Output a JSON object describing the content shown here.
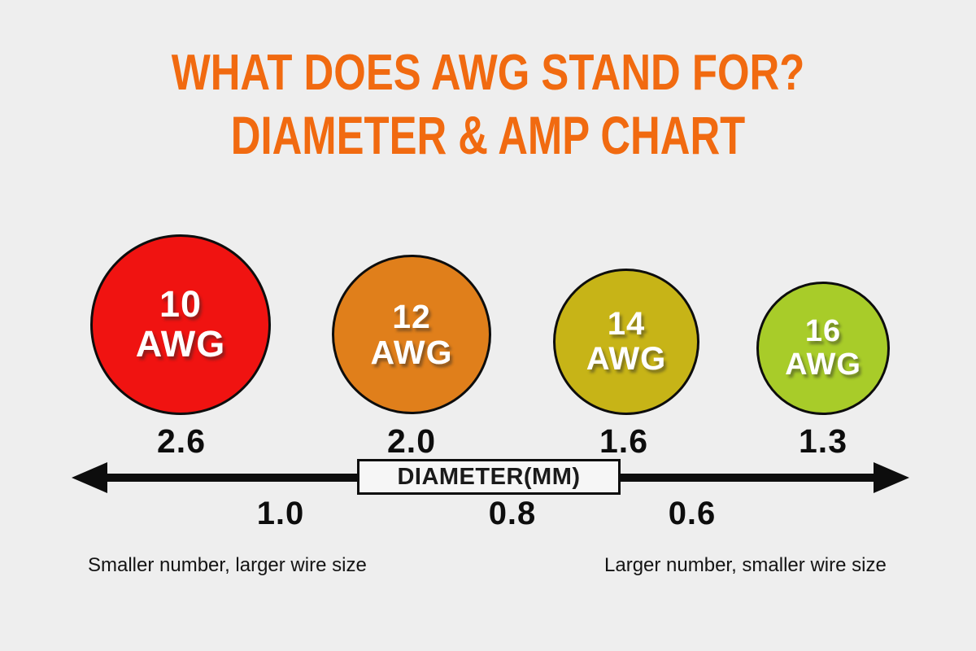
{
  "background": "#eeeeee",
  "title": {
    "line1": "WHAT DOES AWG STAND FOR?",
    "line2": "DIAMETER & AMP CHART",
    "color": "#f16a10"
  },
  "circles": [
    {
      "gauge": "10",
      "unit": "AWG",
      "diameter_mm": "2.6",
      "color": "#f01311"
    },
    {
      "gauge": "12",
      "unit": "AWG",
      "diameter_mm": "2.0",
      "color": "#e07f1b"
    },
    {
      "gauge": "14",
      "unit": "AWG",
      "diameter_mm": "1.6",
      "color": "#c7b417"
    },
    {
      "gauge": "16",
      "unit": "AWG",
      "diameter_mm": "1.3",
      "color": "#a8cc29"
    }
  ],
  "axis": {
    "label": "DIAMETER(MM)",
    "ticks": [
      "1.0",
      "0.8",
      "0.6"
    ],
    "arrow_color": "#0d0d0d"
  },
  "notes": {
    "left": "Smaller number, larger wire size",
    "right": "Larger number, smaller wire size"
  },
  "chart_data": {
    "type": "bubble",
    "title": "WHAT DOES AWG STAND FOR? DIAMETER & AMP CHART",
    "categories": [
      "10 AWG",
      "12 AWG",
      "14 AWG",
      "16 AWG"
    ],
    "values": [
      2.6,
      2.0,
      1.6,
      1.3
    ],
    "xlabel": "DIAMETER(MM)",
    "extra_axis_ticks": [
      1.0,
      0.8,
      0.6
    ],
    "axis_direction": "decreasing diameter left-to-right, double-headed arrow",
    "bubble_colors": [
      "#f01311",
      "#e07f1b",
      "#c7b417",
      "#a8cc29"
    ],
    "annotations": [
      "Smaller number, larger wire size",
      "Larger number, smaller wire size"
    ],
    "legend": "none",
    "grid": false
  }
}
